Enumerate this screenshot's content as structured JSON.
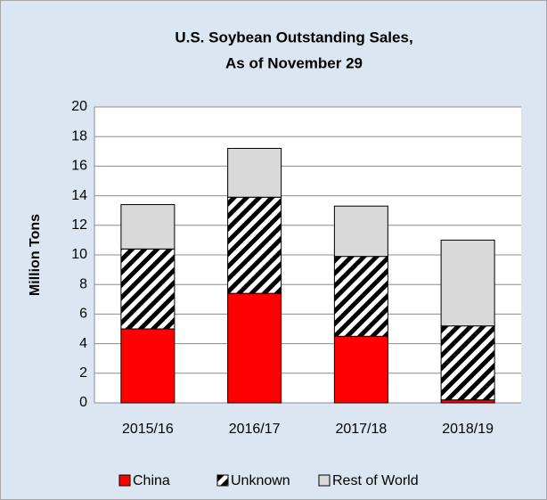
{
  "chart_data": {
    "type": "stacked_bar",
    "title": [
      "U.S. Soybean Outstanding Sales,",
      "As of November 29"
    ],
    "y_label": "Million Tons",
    "categories": [
      "2015/16",
      "2016/17",
      "2017/18",
      "2018/19"
    ],
    "series": [
      {
        "name": "China",
        "color": "#ff0000",
        "values": [
          5.0,
          7.4,
          4.5,
          0.2
        ]
      },
      {
        "name": "Unknown",
        "color": "#000000",
        "hatch": true,
        "values": [
          5.4,
          6.5,
          5.4,
          5.0
        ]
      },
      {
        "name": "Rest of World",
        "color": "#d9d9d9",
        "values": [
          3.0,
          3.3,
          3.4,
          5.8
        ]
      }
    ],
    "ylim": [
      0,
      20
    ],
    "yticks": [
      0,
      2,
      4,
      6,
      8,
      10,
      12,
      14,
      16,
      18,
      20
    ],
    "grid": true,
    "legend": "bottom"
  }
}
